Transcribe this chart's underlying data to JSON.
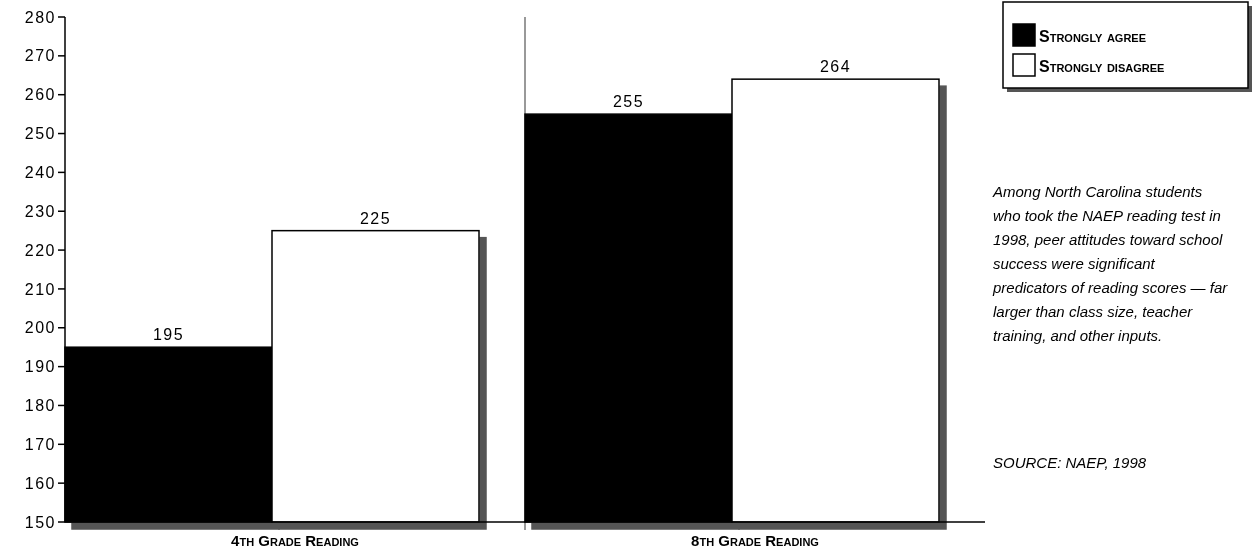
{
  "chart_data": {
    "type": "bar",
    "categories": [
      "4th Grade Reading",
      "8th Grade Reading"
    ],
    "series": [
      {
        "name": "Strongly agree",
        "color": "#000000",
        "values": [
          195,
          255
        ]
      },
      {
        "name": "Strongly disagree",
        "color": "#ffffff",
        "values": [
          225,
          264
        ]
      }
    ],
    "ylim": [
      150,
      280
    ],
    "yticks": [
      150,
      160,
      170,
      180,
      190,
      200,
      210,
      220,
      230,
      240,
      250,
      260,
      270,
      280
    ],
    "data_labels": true,
    "legend": "top right",
    "grid": false,
    "annotations": [
      "Among North Carolina students who took the NAEP reading test in 1998, peer attitudes toward school success were significant predicators of reading scores — far larger than class size, teacher training, and other inputs.",
      "SOURCE: NAEP, 1998"
    ]
  }
}
